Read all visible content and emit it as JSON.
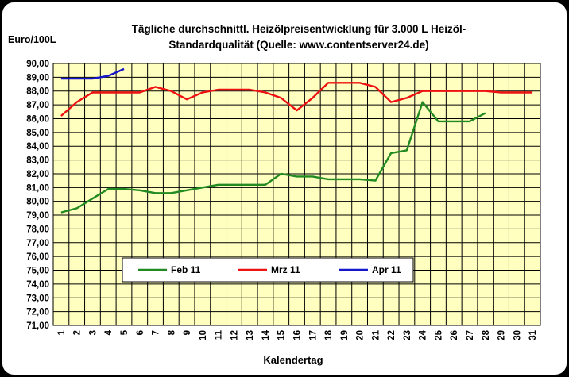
{
  "chart_data": {
    "type": "line",
    "title_line1": "Tägliche durchschnittl. Heizölpreisentwicklung für 3.000 L Heizöl-",
    "title_line2": "Standardqualität (Quelle: www.contentserver24.de)",
    "ylabel": "Euro/100L",
    "xlabel": "Kalendertag",
    "ylim": [
      71,
      90
    ],
    "xlim": [
      1,
      31
    ],
    "ytick_labels": [
      "71,00",
      "72,00",
      "73,00",
      "74,00",
      "75,00",
      "76,00",
      "77,00",
      "78,00",
      "79,00",
      "80,00",
      "81,00",
      "82,00",
      "83,00",
      "84,00",
      "85,00",
      "86,00",
      "87,00",
      "88,00",
      "89,00",
      "90,00"
    ],
    "x_categories": [
      "1",
      "2",
      "3",
      "4",
      "5",
      "6",
      "7",
      "8",
      "9",
      "10",
      "11",
      "12",
      "13",
      "14",
      "15",
      "16",
      "17",
      "18",
      "19",
      "20",
      "21",
      "22",
      "23",
      "24",
      "25",
      "26",
      "27",
      "28",
      "29",
      "30",
      "31"
    ],
    "grid": true,
    "legend_position": "bottom-center",
    "plot_background": "#ffffc0",
    "grid_color": "#000000",
    "series": [
      {
        "name": "Feb 11",
        "color": "#218a21",
        "x": [
          1,
          2,
          3,
          4,
          5,
          6,
          7,
          8,
          9,
          10,
          11,
          12,
          13,
          14,
          15,
          16,
          17,
          18,
          19,
          20,
          21,
          22,
          23,
          24,
          25,
          26,
          27,
          28
        ],
        "values": [
          79.2,
          79.5,
          80.2,
          80.9,
          80.9,
          80.8,
          80.6,
          80.6,
          80.8,
          81.0,
          81.2,
          81.2,
          81.2,
          81.2,
          82.0,
          81.8,
          81.8,
          81.6,
          81.6,
          81.6,
          81.5,
          83.5,
          83.7,
          87.2,
          85.8,
          85.8,
          85.8,
          86.4
        ]
      },
      {
        "name": "Mrz 11",
        "color": "#ee1111",
        "x": [
          1,
          2,
          3,
          4,
          5,
          6,
          7,
          8,
          9,
          10,
          11,
          12,
          13,
          14,
          15,
          16,
          17,
          18,
          19,
          20,
          21,
          22,
          23,
          24,
          25,
          26,
          27,
          28,
          29,
          30,
          31
        ],
        "values": [
          86.2,
          87.2,
          87.9,
          87.9,
          87.9,
          87.9,
          88.3,
          88.0,
          87.4,
          87.9,
          88.1,
          88.1,
          88.1,
          87.9,
          87.5,
          86.6,
          87.5,
          88.6,
          88.6,
          88.6,
          88.3,
          87.2,
          87.5,
          88.0,
          88.0,
          88.0,
          88.0,
          88.0,
          87.9,
          87.9,
          87.9
        ]
      },
      {
        "name": "Apr 11",
        "color": "#1616cc",
        "x": [
          1,
          2,
          3,
          4,
          5
        ],
        "values": [
          88.9,
          88.9,
          88.9,
          89.1,
          89.6
        ]
      }
    ]
  }
}
